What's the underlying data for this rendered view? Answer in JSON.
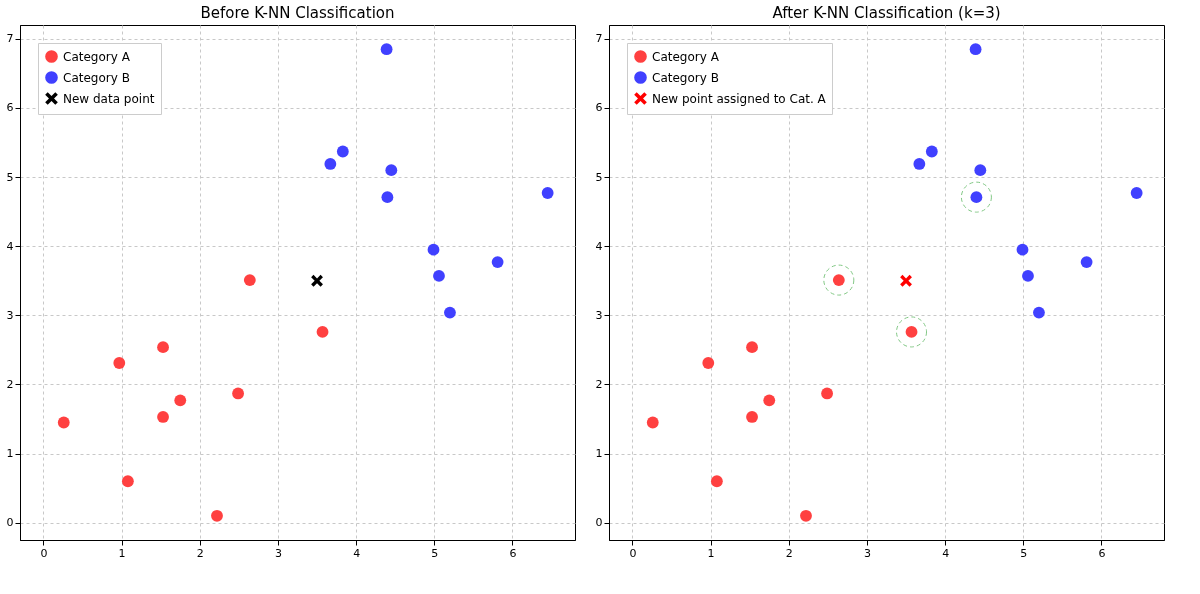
{
  "chart_data": [
    {
      "type": "scatter",
      "title": "Before K-NN Classification",
      "xlim": [
        -0.3,
        6.8
      ],
      "ylim": [
        -0.25,
        7.2
      ],
      "xticks": [
        0,
        1,
        2,
        3,
        4,
        5,
        6
      ],
      "yticks": [
        0,
        1,
        2,
        3,
        4,
        5,
        6,
        7
      ],
      "grid": true,
      "legend": "top left",
      "series": [
        {
          "name": "Category A",
          "color": "#ff4040",
          "marker": "circle",
          "x": [
            0.26,
            0.97,
            1.08,
            1.53,
            1.53,
            1.75,
            2.22,
            2.49,
            2.64,
            3.57
          ],
          "values": [
            1.45,
            2.31,
            0.6,
            2.54,
            1.53,
            1.77,
            0.1,
            1.87,
            3.51,
            2.76
          ]
        },
        {
          "name": "Category B",
          "color": "#4040ff",
          "marker": "circle",
          "x": [
            4.39,
            3.83,
            3.67,
            4.45,
            4.4,
            4.99,
            5.06,
            5.2,
            5.81,
            6.45
          ],
          "values": [
            6.85,
            5.37,
            5.19,
            5.1,
            4.71,
            3.95,
            3.57,
            3.04,
            3.77,
            4.77
          ]
        },
        {
          "name": "New data point",
          "color": "#000000",
          "marker": "cross",
          "x": [
            3.5
          ],
          "values": [
            3.5
          ]
        }
      ]
    },
    {
      "type": "scatter",
      "title": "After K-NN Classification (k=3)",
      "xlim": [
        -0.3,
        6.8
      ],
      "ylim": [
        -0.25,
        7.2
      ],
      "xticks": [
        0,
        1,
        2,
        3,
        4,
        5,
        6
      ],
      "yticks": [
        0,
        1,
        2,
        3,
        4,
        5,
        6,
        7
      ],
      "grid": true,
      "legend": "top left",
      "series": [
        {
          "name": "Category A",
          "color": "#ff4040",
          "marker": "circle",
          "x": [
            0.26,
            0.97,
            1.08,
            1.53,
            1.53,
            1.75,
            2.22,
            2.49,
            2.64,
            3.57
          ],
          "values": [
            1.45,
            2.31,
            0.6,
            2.54,
            1.53,
            1.77,
            0.1,
            1.87,
            3.51,
            2.76
          ]
        },
        {
          "name": "Category B",
          "color": "#4040ff",
          "marker": "circle",
          "x": [
            4.39,
            3.83,
            3.67,
            4.45,
            4.4,
            4.99,
            5.06,
            5.2,
            5.81,
            6.45
          ],
          "values": [
            6.85,
            5.37,
            5.19,
            5.1,
            4.71,
            3.95,
            3.57,
            3.04,
            3.77,
            4.77
          ]
        },
        {
          "name": "New point assigned to Cat. A",
          "color": "#ff0000",
          "marker": "cross",
          "x": [
            3.5
          ],
          "values": [
            3.5
          ]
        },
        {
          "color": "#4caf50",
          "marker": "circle",
          "line_style": "dashed",
          "x": [
            2.64,
            3.57,
            4.4
          ],
          "values": [
            3.51,
            2.76,
            4.71
          ]
        }
      ]
    }
  ]
}
